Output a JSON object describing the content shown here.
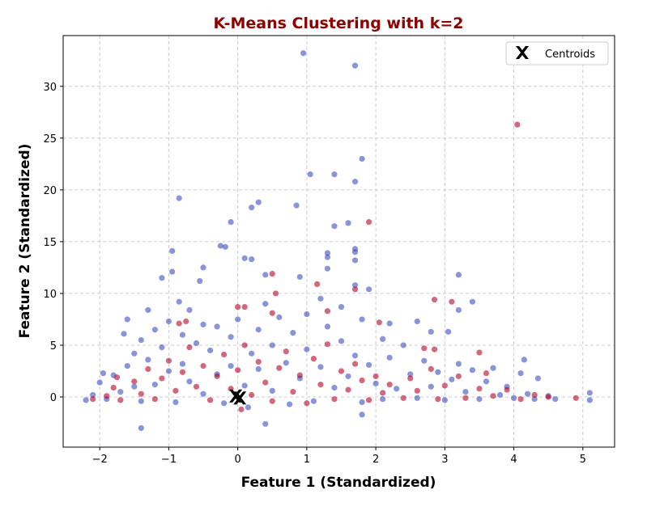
{
  "chart_data": {
    "type": "scatter",
    "title": "K-Means Clustering with k=2",
    "title_color": "#8b0000",
    "xlabel": "Feature 1 (Standardized)",
    "ylabel": "Feature 2 (Standardized)",
    "xlim": [
      -2.53,
      5.46
    ],
    "ylim": [
      -4.84,
      34.9
    ],
    "xticks": [
      -2,
      -1,
      0,
      1,
      2,
      3,
      4,
      5
    ],
    "yticks": [
      0,
      5,
      10,
      15,
      20,
      25,
      30
    ],
    "grid": true,
    "legend": {
      "placement": "top-right",
      "entries": [
        {
          "label": "Centroids",
          "marker": "X",
          "color": "#000000"
        }
      ]
    },
    "point_alpha": 0.6,
    "series": [
      {
        "color": "#3b4cc0",
        "points": [
          [
            0.95,
            33.2
          ],
          [
            1.7,
            32
          ],
          [
            1.8,
            23
          ],
          [
            1.05,
            21.5
          ],
          [
            1.4,
            21.5
          ],
          [
            1.7,
            20.8
          ],
          [
            -0.85,
            19.2
          ],
          [
            0.3,
            18.8
          ],
          [
            0.2,
            18.3
          ],
          [
            0.85,
            18.5
          ],
          [
            -0.1,
            16.9
          ],
          [
            1.4,
            16.5
          ],
          [
            1.6,
            16.8
          ],
          [
            -0.95,
            14.1
          ],
          [
            -0.25,
            14.6
          ],
          [
            -0.18,
            14.5
          ],
          [
            1.7,
            14.3
          ],
          [
            1.7,
            14.0
          ],
          [
            1.7,
            13.2
          ],
          [
            0.1,
            13.4
          ],
          [
            0.2,
            13.3
          ],
          [
            1.3,
            13.9
          ],
          [
            1.3,
            13.5
          ],
          [
            -0.5,
            12.5
          ],
          [
            -0.95,
            12.1
          ],
          [
            1.3,
            12.4
          ],
          [
            3.2,
            11.8
          ],
          [
            -1.1,
            11.5
          ],
          [
            0.4,
            11.8
          ],
          [
            0.9,
            11.6
          ],
          [
            -0.55,
            11.2
          ],
          [
            1.7,
            10.8
          ],
          [
            1.9,
            10.4
          ],
          [
            -1.4,
            -3.0
          ],
          [
            0.4,
            -2.6
          ],
          [
            1.8,
            -1.7
          ],
          [
            5.1,
            0.4
          ],
          [
            5.1,
            -0.3
          ],
          [
            4.6,
            -0.2
          ],
          [
            4.15,
            3.6
          ],
          [
            4.35,
            1.8
          ],
          [
            3.4,
            9.2
          ],
          [
            3.2,
            8.4
          ],
          [
            2.8,
            6.3
          ],
          [
            3.05,
            6.3
          ],
          [
            2.6,
            7.3
          ],
          [
            2.2,
            7.1
          ],
          [
            2.1,
            5.6
          ],
          [
            -1.65,
            6.1
          ],
          [
            -1.6,
            7.5
          ],
          [
            -1.3,
            8.4
          ],
          [
            -0.85,
            9.2
          ],
          [
            -2.2,
            -0.3
          ],
          [
            -2.1,
            0.2
          ],
          [
            -2.0,
            1.4
          ],
          [
            -1.95,
            2.3
          ],
          [
            -1.9,
            -0.2
          ],
          [
            -1.8,
            2.1
          ],
          [
            -1.7,
            0.5
          ],
          [
            -1.6,
            3.0
          ],
          [
            -1.5,
            4.2
          ],
          [
            -1.5,
            1.0
          ],
          [
            -1.4,
            5.5
          ],
          [
            -1.4,
            -0.4
          ],
          [
            -1.3,
            3.6
          ],
          [
            -1.2,
            6.5
          ],
          [
            -1.2,
            1.2
          ],
          [
            -1.1,
            4.8
          ],
          [
            -1.0,
            7.3
          ],
          [
            -1.0,
            2.5
          ],
          [
            -0.9,
            -0.5
          ],
          [
            -0.8,
            6.0
          ],
          [
            -0.8,
            3.2
          ],
          [
            -0.7,
            8.4
          ],
          [
            -0.7,
            1.5
          ],
          [
            -0.6,
            5.2
          ],
          [
            -0.5,
            7.0
          ],
          [
            -0.5,
            0.3
          ],
          [
            -0.4,
            4.5
          ],
          [
            -0.3,
            6.8
          ],
          [
            -0.3,
            2.2
          ],
          [
            -0.2,
            -0.6
          ],
          [
            -0.1,
            5.8
          ],
          [
            -0.1,
            3.0
          ],
          [
            0.0,
            7.5
          ],
          [
            0.1,
            1.1
          ],
          [
            0.15,
            -1.0
          ],
          [
            0.2,
            4.2
          ],
          [
            0.3,
            6.5
          ],
          [
            0.3,
            2.7
          ],
          [
            0.4,
            9.0
          ],
          [
            0.5,
            0.6
          ],
          [
            0.5,
            5.0
          ],
          [
            0.6,
            7.7
          ],
          [
            0.7,
            3.3
          ],
          [
            0.75,
            -0.7
          ],
          [
            0.8,
            6.2
          ],
          [
            0.9,
            1.8
          ],
          [
            1.0,
            8.0
          ],
          [
            1.0,
            4.6
          ],
          [
            1.1,
            -0.4
          ],
          [
            1.2,
            9.5
          ],
          [
            1.2,
            2.9
          ],
          [
            1.3,
            6.8
          ],
          [
            1.4,
            0.9
          ],
          [
            1.5,
            5.4
          ],
          [
            1.5,
            8.7
          ],
          [
            1.6,
            2.0
          ],
          [
            1.7,
            4.0
          ],
          [
            1.8,
            7.5
          ],
          [
            1.8,
            -0.5
          ],
          [
            1.9,
            3.1
          ],
          [
            2.0,
            1.3
          ],
          [
            2.1,
            -0.2
          ],
          [
            2.2,
            3.8
          ],
          [
            2.3,
            0.8
          ],
          [
            2.4,
            5.0
          ],
          [
            2.5,
            2.2
          ],
          [
            2.6,
            -0.1
          ],
          [
            2.7,
            3.5
          ],
          [
            2.8,
            1.0
          ],
          [
            2.9,
            2.4
          ],
          [
            3.0,
            -0.3
          ],
          [
            3.1,
            1.7
          ],
          [
            3.2,
            3.2
          ],
          [
            3.3,
            0.5
          ],
          [
            3.4,
            2.6
          ],
          [
            3.5,
            -0.2
          ],
          [
            3.6,
            1.5
          ],
          [
            3.7,
            2.8
          ],
          [
            3.8,
            0.2
          ],
          [
            3.9,
            1.0
          ],
          [
            4.0,
            -0.1
          ],
          [
            4.1,
            2.3
          ],
          [
            4.2,
            0.3
          ],
          [
            4.3,
            -0.2
          ],
          [
            4.5,
            0.1
          ]
        ]
      },
      {
        "color": "#b40426",
        "points": [
          [
            4.05,
            26.3
          ],
          [
            1.9,
            16.9
          ],
          [
            0.5,
            11.9
          ],
          [
            1.15,
            10.9
          ],
          [
            2.05,
            7.2
          ],
          [
            2.85,
            9.4
          ],
          [
            3.1,
            9.2
          ],
          [
            1.7,
            10.4
          ],
          [
            0.1,
            8.7
          ],
          [
            0.0,
            8.7
          ],
          [
            1.3,
            8.3
          ],
          [
            0.5,
            8.1
          ],
          [
            3.5,
            4.3
          ],
          [
            2.85,
            4.6
          ],
          [
            2.7,
            4.7
          ],
          [
            -0.75,
            7.3
          ],
          [
            4.9,
            -0.1
          ],
          [
            4.5,
            0.0
          ],
          [
            -1.75,
            1.9
          ],
          [
            0.05,
            -1.2
          ],
          [
            -0.85,
            7.1
          ],
          [
            0.55,
            10.0
          ],
          [
            -2.1,
            -0.2
          ],
          [
            -1.9,
            0.1
          ],
          [
            -1.8,
            0.9
          ],
          [
            -1.7,
            -0.3
          ],
          [
            -1.5,
            1.5
          ],
          [
            -1.4,
            0.3
          ],
          [
            -1.3,
            2.7
          ],
          [
            -1.2,
            -0.2
          ],
          [
            -1.1,
            1.8
          ],
          [
            -1.0,
            3.5
          ],
          [
            -0.9,
            0.6
          ],
          [
            -0.8,
            2.4
          ],
          [
            -0.7,
            4.8
          ],
          [
            -0.6,
            1.0
          ],
          [
            -0.5,
            3.0
          ],
          [
            -0.4,
            -0.3
          ],
          [
            -0.3,
            2.0
          ],
          [
            -0.2,
            4.1
          ],
          [
            -0.1,
            0.8
          ],
          [
            0.0,
            2.6
          ],
          [
            0.1,
            5.0
          ],
          [
            0.2,
            0.2
          ],
          [
            0.3,
            3.4
          ],
          [
            0.4,
            1.4
          ],
          [
            0.5,
            -0.4
          ],
          [
            0.6,
            2.8
          ],
          [
            0.7,
            4.4
          ],
          [
            0.8,
            0.5
          ],
          [
            0.9,
            2.1
          ],
          [
            1.0,
            -0.6
          ],
          [
            1.1,
            3.7
          ],
          [
            1.2,
            1.2
          ],
          [
            1.3,
            5.1
          ],
          [
            1.4,
            -0.2
          ],
          [
            1.5,
            2.5
          ],
          [
            1.6,
            0.7
          ],
          [
            1.7,
            3.2
          ],
          [
            1.8,
            1.6
          ],
          [
            1.9,
            -0.3
          ],
          [
            2.0,
            2.0
          ],
          [
            2.1,
            0.4
          ],
          [
            2.2,
            1.2
          ],
          [
            2.4,
            -0.1
          ],
          [
            2.5,
            1.8
          ],
          [
            2.6,
            0.6
          ],
          [
            2.8,
            2.7
          ],
          [
            2.9,
            -0.2
          ],
          [
            3.0,
            1.1
          ],
          [
            3.2,
            2.0
          ],
          [
            3.3,
            -0.1
          ],
          [
            3.5,
            0.8
          ],
          [
            3.6,
            2.3
          ],
          [
            3.7,
            0.1
          ],
          [
            3.9,
            0.7
          ],
          [
            4.1,
            -0.2
          ],
          [
            4.3,
            0.2
          ]
        ]
      }
    ],
    "centroids": [
      [
        -0.03,
        0.1
      ],
      [
        0.03,
        -0.1
      ]
    ]
  }
}
